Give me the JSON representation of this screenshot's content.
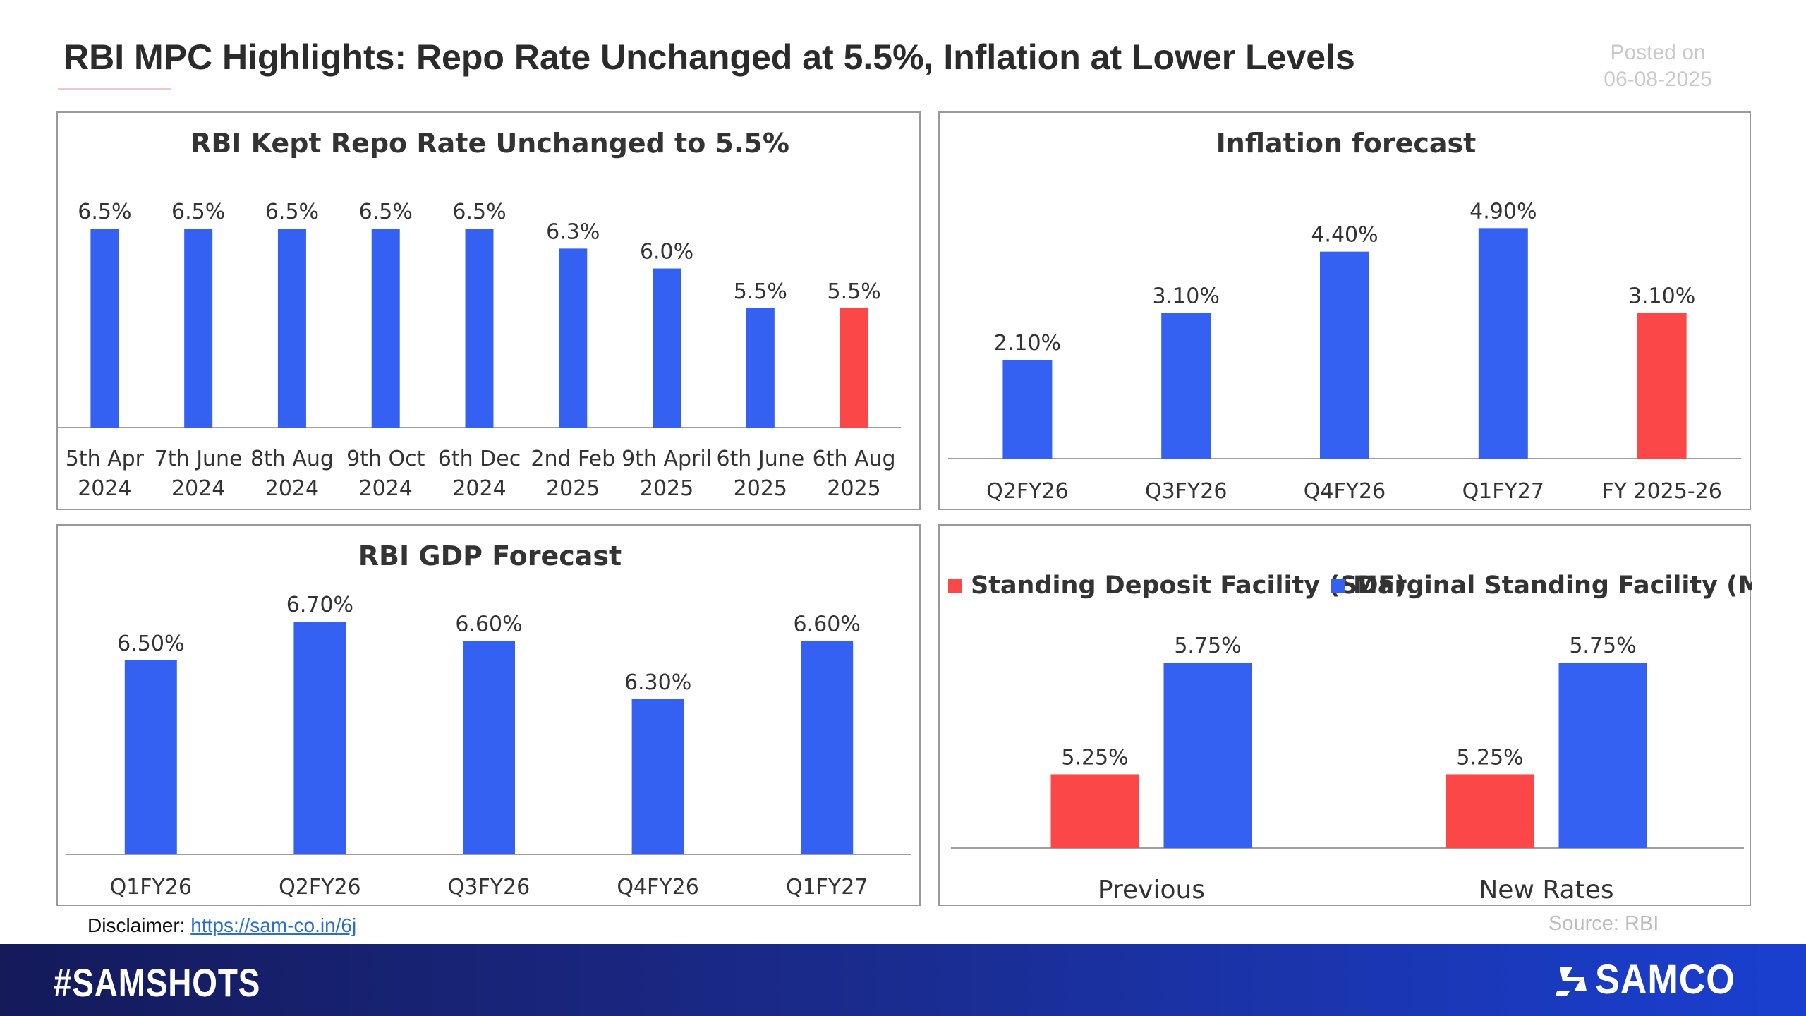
{
  "header": {
    "title": "RBI MPC Highlights: Repo Rate Unchanged at 5.5%, Inflation at Lower Levels",
    "posted_label": "Posted on",
    "posted_date": "06-08-2025"
  },
  "colors": {
    "blue": "#3461f2",
    "red": "#fb4748",
    "axis": "#9e9e9e",
    "text": "#333333"
  },
  "chart_data": [
    {
      "id": "repo",
      "type": "bar",
      "title": "RBI Kept Repo Rate Unchanged to 5.5%",
      "categories": [
        [
          "5th Apr",
          "2024"
        ],
        [
          "7th June",
          "2024"
        ],
        [
          "8th Aug",
          "2024"
        ],
        [
          "9th Oct",
          "2024"
        ],
        [
          "6th Dec",
          "2024"
        ],
        [
          "2nd Feb",
          "2025"
        ],
        [
          "9th April",
          "2025"
        ],
        [
          "6th June",
          "2025"
        ],
        [
          "6th Aug",
          "2025"
        ]
      ],
      "values": [
        6.5,
        6.5,
        6.5,
        6.5,
        6.5,
        6.25,
        6.0,
        5.5,
        5.5
      ],
      "labels": [
        "6.5%",
        "6.5%",
        "6.5%",
        "6.5%",
        "6.5%",
        "6.3%",
        "6.0%",
        "5.5%",
        "5.5%"
      ],
      "highlight": [
        8
      ],
      "ylim": [
        4.0,
        6.75
      ]
    },
    {
      "id": "inflation",
      "type": "bar",
      "title": "Inflation forecast",
      "categories": [
        [
          "Q2FY26"
        ],
        [
          "Q3FY26"
        ],
        [
          "Q4FY26"
        ],
        [
          "Q1FY27"
        ],
        [
          "FY 2025-26"
        ]
      ],
      "values": [
        2.1,
        3.1,
        4.4,
        4.9,
        3.1
      ],
      "labels": [
        "2.10%",
        "3.10%",
        "4.40%",
        "4.90%",
        "3.10%"
      ],
      "highlight": [
        4
      ],
      "ylim": [
        0.0,
        5.4
      ]
    },
    {
      "id": "gdp",
      "type": "bar",
      "title": "RBI GDP Forecast",
      "categories": [
        [
          "Q1FY26"
        ],
        [
          "Q2FY26"
        ],
        [
          "Q3FY26"
        ],
        [
          "Q4FY26"
        ],
        [
          "Q1FY27"
        ]
      ],
      "values": [
        6.5,
        6.7,
        6.6,
        6.3,
        6.6
      ],
      "labels": [
        "6.50%",
        "6.70%",
        "6.60%",
        "6.30%",
        "6.60%"
      ],
      "highlight": [],
      "ylim": [
        5.5,
        6.7
      ]
    },
    {
      "id": "facility",
      "type": "bar",
      "title": "",
      "categories": [
        [
          "Previous"
        ],
        [
          "New Rates"
        ]
      ],
      "series": [
        {
          "name": "Standing Deposit Facility (SDF)",
          "values": [
            5.25,
            5.25
          ],
          "labels": [
            "5.25%",
            "5.25%"
          ],
          "color": "#fb4748"
        },
        {
          "name": "Marginal Standing Facility (MSF)",
          "values": [
            5.75,
            5.75
          ],
          "labels": [
            "5.75%",
            "5.75%"
          ],
          "color": "#3461f2"
        }
      ],
      "legend": "top",
      "ylim": [
        4.92,
        5.75
      ]
    }
  ],
  "footer": {
    "disclaimer_label": "Disclaimer:",
    "disclaimer_link": "https://sam-co.in/6j",
    "source": "Source: RBI",
    "hashtag": "#SAMSHOTS",
    "brand": "SAMCO"
  }
}
